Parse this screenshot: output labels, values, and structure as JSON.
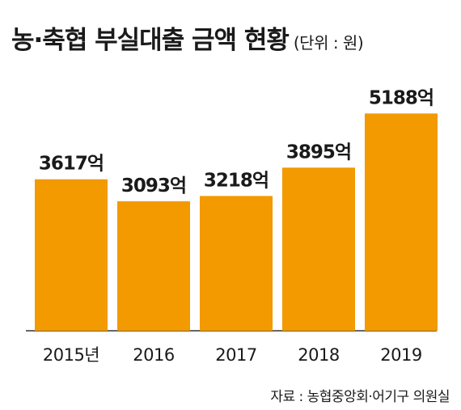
{
  "chart_data": {
    "type": "bar",
    "title": "농·축협 부실대출 금액 현황",
    "unit_note": "(단위 : 원)",
    "categories": [
      "2015년",
      "2016",
      "2017",
      "2018",
      "2019"
    ],
    "values": [
      3617,
      3093,
      3218,
      3895,
      5188
    ],
    "value_labels": [
      "3617억",
      "3093억",
      "3218억",
      "3895억",
      "5188억"
    ],
    "ylim": [
      0,
      5600
    ],
    "bar_color": "#f29a00",
    "grid": false,
    "source": "자료 : 농협중앙회·어기구 의원실"
  }
}
